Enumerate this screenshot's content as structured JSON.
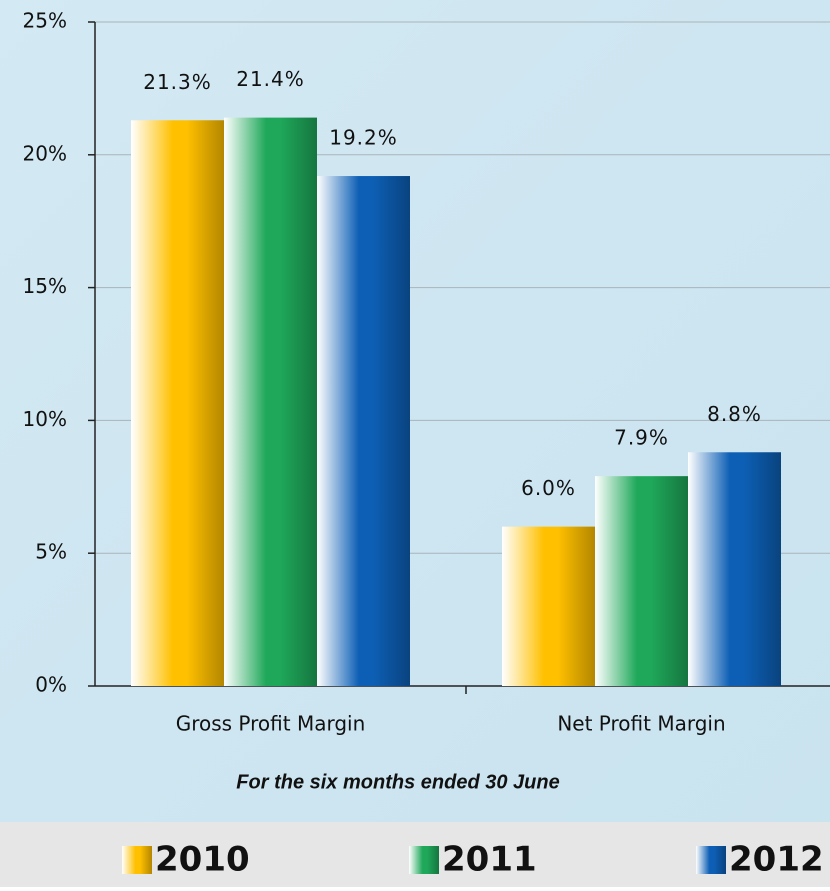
{
  "chart_data": {
    "type": "bar",
    "categories": [
      "Gross Profit Margin",
      "Net Profit Margin"
    ],
    "series": [
      {
        "name": "2010",
        "color": "#ffc000",
        "values": [
          21.3,
          6.0
        ],
        "value_labels": [
          "21.3%",
          "6.0%"
        ]
      },
      {
        "name": "2011",
        "color": "#1fa85a",
        "values": [
          21.4,
          7.9
        ],
        "value_labels": [
          "21.4%",
          "7.9%"
        ]
      },
      {
        "name": "2012",
        "color": "#0d5fb5",
        "values": [
          19.2,
          8.8
        ],
        "value_labels": [
          "19.2%",
          "8.8%"
        ]
      }
    ],
    "ylim": [
      0,
      25
    ],
    "yticks": [
      {
        "value": 0,
        "label": "0%"
      },
      {
        "value": 5,
        "label": "5%"
      },
      {
        "value": 10,
        "label": "10%"
      },
      {
        "value": 15,
        "label": "15%"
      },
      {
        "value": 20,
        "label": "20%"
      },
      {
        "value": 25,
        "label": "25%"
      }
    ],
    "grid": true,
    "annotation": "For the six months ended 30 June",
    "legend": "bottom"
  }
}
